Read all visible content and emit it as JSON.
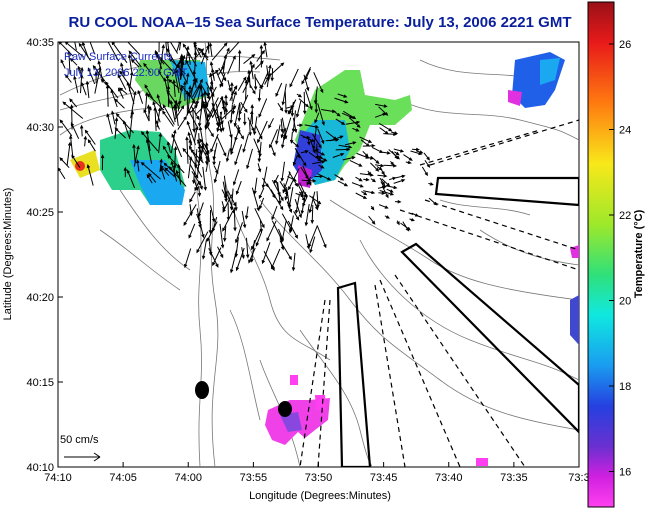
{
  "title": "RU COOL  NOAA–15  Sea Surface Temperature:  July 13, 2006 2221 GMT",
  "inset": {
    "line1": "Raw Surface Currents",
    "line2": "July 13, 2006 22:00 GMT"
  },
  "axes": {
    "xlabel": "Longitude (Degrees:Minutes)",
    "ylabel": "Latitude (Degrees:Minutes)",
    "x_ticks": [
      "74:10",
      "74:05",
      "74:00",
      "73:55",
      "73:50",
      "73:45",
      "73:40",
      "73:35",
      "73:3"
    ],
    "y_ticks": [
      "40:35",
      "40:30",
      "40:25",
      "40:20",
      "40:15",
      "40:10"
    ]
  },
  "scale": {
    "label": "50 cm/s"
  },
  "colorbar": {
    "label": "Temperature (°C)",
    "ticks": [
      "26",
      "24",
      "22",
      "20",
      "18",
      "16"
    ],
    "colors": [
      "#d4141c",
      "#f03a1a",
      "#ff8c10",
      "#f5e01a",
      "#a8e82a",
      "#2fe07a",
      "#10e8d8",
      "#20a0f0",
      "#2050e8",
      "#3a2fd0",
      "#8a3fd8",
      "#e020e0",
      "#ff40f0"
    ]
  }
}
